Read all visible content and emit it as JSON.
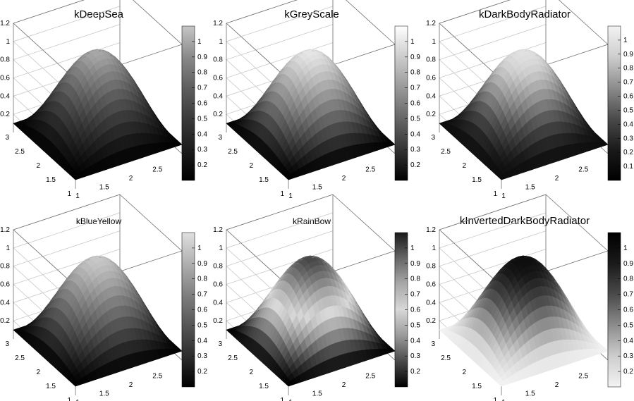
{
  "chart_data": [
    {
      "type": "surface",
      "title": "kDeepSea",
      "palette": "kDeepSea",
      "x_ticks": [
        "1",
        "1.5",
        "2",
        "2.5"
      ],
      "y_ticks": [
        "1",
        "1.5",
        "2",
        "2.5",
        "3"
      ],
      "z_ticks": [
        "0.2",
        "0.4",
        "0.6",
        "0.8",
        "1",
        "1.2"
      ],
      "colorbar_ticks": [
        "0.2",
        "0.3",
        "0.4",
        "0.5",
        "0.6",
        "0.7",
        "0.8",
        "0.9",
        "1"
      ],
      "xlim": [
        1,
        3
      ],
      "ylim": [
        1,
        3
      ],
      "zlim": [
        0,
        1.2
      ],
      "colorbar_range": [
        0.1,
        1.1
      ],
      "surface_min": 0.1,
      "surface_peak": 1.0,
      "colors": [
        "#000000",
        "#1c1c1c",
        "#3a3a3a",
        "#5e5e5e",
        "#8a8a8a",
        "#c6c6c6"
      ]
    },
    {
      "type": "surface",
      "title": "kGreyScale",
      "palette": "kGreyScale",
      "x_ticks": [
        "1",
        "1.5",
        "2",
        "2.5"
      ],
      "y_ticks": [
        "1",
        "1.5",
        "2",
        "2.5",
        "3"
      ],
      "z_ticks": [
        "0.2",
        "0.4",
        "0.6",
        "0.8",
        "1",
        "1.2"
      ],
      "colorbar_ticks": [
        "0.2",
        "0.3",
        "0.4",
        "0.5",
        "0.6",
        "0.7",
        "0.8",
        "0.9",
        "1"
      ],
      "xlim": [
        1,
        3
      ],
      "ylim": [
        1,
        3
      ],
      "zlim": [
        0,
        1.2
      ],
      "colorbar_range": [
        0.1,
        1.1
      ],
      "surface_min": 0.1,
      "surface_peak": 1.0,
      "colors": [
        "#000000",
        "#333333",
        "#666666",
        "#999999",
        "#cccccc",
        "#ffffff"
      ]
    },
    {
      "type": "surface",
      "title": "kDarkBodyRadiator",
      "palette": "kDarkBodyRadiator",
      "x_ticks": [
        "1",
        "1.5",
        "2",
        "2.5"
      ],
      "y_ticks": [
        "1",
        "1.5",
        "2",
        "2.5",
        "3"
      ],
      "z_ticks": [
        "0.2",
        "0.4",
        "0.6",
        "0.8",
        "1",
        "1.2"
      ],
      "colorbar_ticks": [
        "0.1",
        "0.2",
        "0.3",
        "0.4",
        "0.5",
        "0.6",
        "0.7",
        "0.8",
        "0.9",
        "1"
      ],
      "xlim": [
        1,
        3
      ],
      "ylim": [
        1,
        3
      ],
      "zlim": [
        0,
        1.2
      ],
      "colorbar_range": [
        0.0,
        1.1
      ],
      "surface_min": 0.1,
      "surface_peak": 1.0,
      "colors": [
        "#000000",
        "#1a1a1a",
        "#4a4a4a",
        "#8c8c8c",
        "#cdcdcd",
        "#f3f3f3"
      ]
    },
    {
      "type": "surface",
      "title": "kBlueYellow",
      "palette": "kBlueYellow",
      "x_ticks": [
        "1",
        "1.5",
        "2",
        "2.5"
      ],
      "y_ticks": [
        "1",
        "1.5",
        "2",
        "2.5",
        "3"
      ],
      "z_ticks": [
        "0.2",
        "0.4",
        "0.6",
        "0.8",
        "1",
        "1.2"
      ],
      "colorbar_ticks": [
        "0.2",
        "0.3",
        "0.4",
        "0.5",
        "0.6",
        "0.7",
        "0.8",
        "0.9",
        "1"
      ],
      "xlim": [
        1,
        3
      ],
      "ylim": [
        1,
        3
      ],
      "zlim": [
        0,
        1.2
      ],
      "colorbar_range": [
        0.1,
        1.1
      ],
      "surface_min": 0.1,
      "surface_peak": 1.0,
      "colors": [
        "#000000",
        "#2c2c2c",
        "#565656",
        "#808080",
        "#b0b0b0",
        "#e0e0e0"
      ]
    },
    {
      "type": "surface",
      "title": "kRainBow",
      "palette": "kRainBow",
      "x_ticks": [
        "1",
        "1.5",
        "2",
        "2.5"
      ],
      "y_ticks": [
        "1",
        "1.5",
        "2",
        "2.5",
        "3"
      ],
      "z_ticks": [
        "0.2",
        "0.4",
        "0.6",
        "0.8",
        "1",
        "1.2"
      ],
      "colorbar_ticks": [
        "0.2",
        "0.3",
        "0.4",
        "0.5",
        "0.6",
        "0.7",
        "0.8",
        "0.9",
        "1"
      ],
      "xlim": [
        1,
        3
      ],
      "ylim": [
        1,
        3
      ],
      "zlim": [
        0,
        1.2
      ],
      "colorbar_range": [
        0.1,
        1.1
      ],
      "surface_min": 0.1,
      "surface_peak": 1.0,
      "colors": [
        "#000000",
        "#4a4a4a",
        "#9a9a9a",
        "#d8d8d8",
        "#a8a8a8",
        "#666666",
        "#1a1a1a"
      ]
    },
    {
      "type": "surface",
      "title": "kInvertedDarkBodyRadiator",
      "palette": "kInvertedDarkBodyRadiator",
      "x_ticks": [
        "1",
        "1.5",
        "2",
        "2.5"
      ],
      "y_ticks": [
        "1",
        "1.5",
        "2",
        "2.5",
        "3"
      ],
      "z_ticks": [
        "0.2",
        "0.4",
        "0.6",
        "0.8",
        "1",
        "1.2"
      ],
      "colorbar_ticks": [
        "0.2",
        "0.3",
        "0.4",
        "0.5",
        "0.6",
        "0.7",
        "0.8",
        "0.9",
        "1"
      ],
      "xlim": [
        1,
        3
      ],
      "ylim": [
        1,
        3
      ],
      "zlim": [
        0,
        1.2
      ],
      "colorbar_range": [
        0.1,
        1.1
      ],
      "surface_min": 0.1,
      "surface_peak": 1.0,
      "colors": [
        "#f3f3f3",
        "#cdcdcd",
        "#8c8c8c",
        "#4a4a4a",
        "#1a1a1a",
        "#000000"
      ]
    }
  ]
}
